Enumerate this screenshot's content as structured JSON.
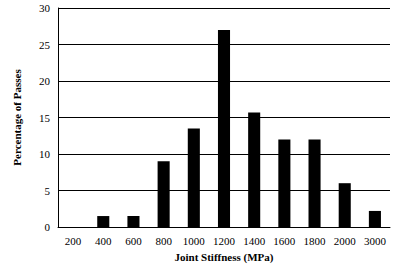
{
  "chart_data": {
    "type": "bar",
    "x_label": "Joint Stiffness (MPa)",
    "y_label": "Percentage of Passes",
    "categories": [
      "200",
      "400",
      "600",
      "800",
      "1000",
      "1200",
      "1400",
      "1600",
      "1800",
      "2000",
      "3000"
    ],
    "values": [
      0,
      1.5,
      1.5,
      9,
      13.5,
      27,
      15.7,
      12,
      12,
      6,
      2.2
    ],
    "color": "#000000",
    "ylim": [
      0,
      30
    ],
    "yticks": [
      0,
      5,
      10,
      15,
      20,
      25,
      30
    ],
    "grid": true
  }
}
